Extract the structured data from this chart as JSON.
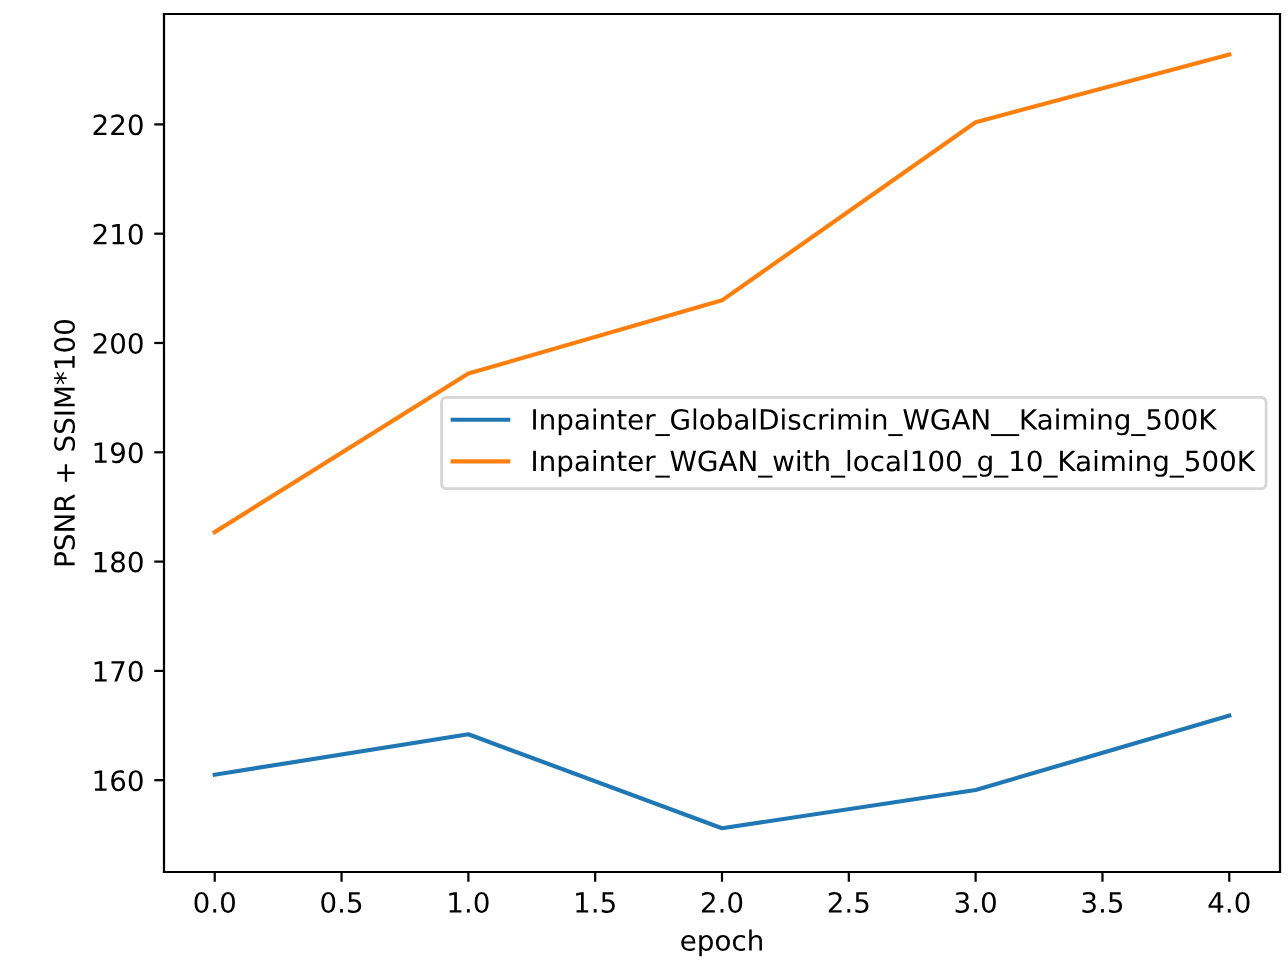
{
  "chart_data": {
    "type": "line",
    "xlabel": "epoch",
    "ylabel": "PSNR + SSIM*100",
    "x": [
      0,
      1,
      2,
      3,
      4
    ],
    "series": [
      {
        "name": "Inpainter_GlobalDiscrimin_WGAN__Kaiming_500K",
        "color": "#1f77b4",
        "values": [
          160.5,
          164.2,
          155.6,
          159.1,
          165.9
        ]
      },
      {
        "name": "Inpainter_WGAN_with_local100_g_10_Kaiming_500K",
        "color": "#ff7f0e",
        "values": [
          182.7,
          197.2,
          203.9,
          220.2,
          226.4
        ]
      }
    ],
    "xlim": [
      -0.2,
      4.2
    ],
    "ylim": [
      151.6,
      230.1
    ],
    "xticks": [
      {
        "value": 0,
        "label": "0.0"
      },
      {
        "value": 0.5,
        "label": "0.5"
      },
      {
        "value": 1,
        "label": "1.0"
      },
      {
        "value": 1.5,
        "label": "1.5"
      },
      {
        "value": 2,
        "label": "2.0"
      },
      {
        "value": 2.5,
        "label": "2.5"
      },
      {
        "value": 3,
        "label": "3.0"
      },
      {
        "value": 3.5,
        "label": "3.5"
      },
      {
        "value": 4,
        "label": "4.0"
      }
    ],
    "yticks": [
      160,
      170,
      180,
      190,
      200,
      210,
      220
    ],
    "legend": "center right",
    "marker": "none",
    "line_style": "solid"
  }
}
